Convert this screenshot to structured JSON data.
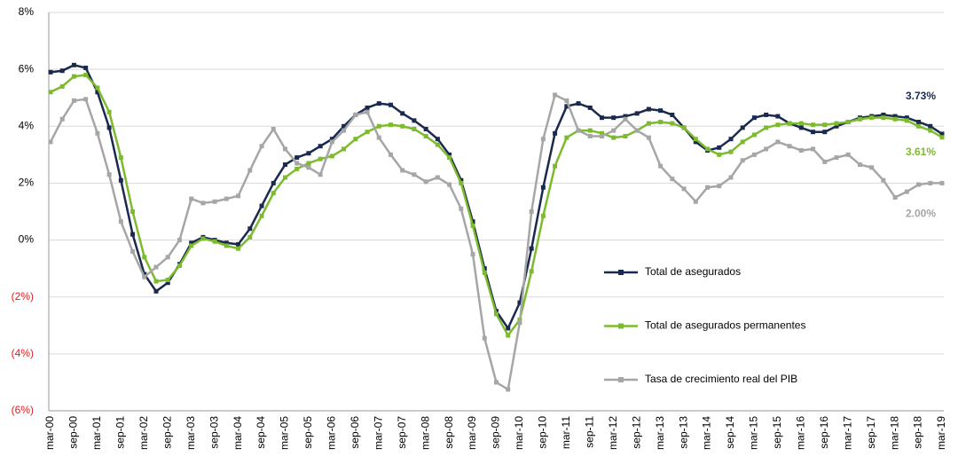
{
  "chart_data": {
    "type": "line",
    "categories": [
      "mar-00",
      null,
      "sep-00",
      null,
      "mar-01",
      null,
      "sep-01",
      null,
      "mar-02",
      null,
      "sep-02",
      null,
      "mar-03",
      null,
      "sep-03",
      null,
      "mar-04",
      null,
      "sep-04",
      null,
      "mar-05",
      null,
      "sep-05",
      null,
      "mar-06",
      null,
      "sep-06",
      null,
      "mar-07",
      null,
      "sep-07",
      null,
      "mar-08",
      null,
      "sep-08",
      null,
      "mar-09",
      null,
      "sep-09",
      null,
      "mar-10",
      null,
      "sep-10",
      null,
      "mar-11",
      null,
      "sep-11",
      null,
      "mar-12",
      null,
      "sep-12",
      null,
      "mar-13",
      null,
      "sep-13",
      null,
      "mar-14",
      null,
      "sep-14",
      null,
      "mar-15",
      null,
      "sep-15",
      null,
      "mar-16",
      null,
      "sep-16",
      null,
      "mar-17",
      null,
      "sep-17",
      null,
      "mar-18",
      null,
      "sep-18",
      null,
      "mar-19"
    ],
    "series": [
      {
        "name": "Total de asegurados",
        "color": "#1a2a4f",
        "end_label": "3.73%",
        "values": [
          5.9,
          5.95,
          6.15,
          6.05,
          5.2,
          3.95,
          2.1,
          0.2,
          -1.2,
          -1.8,
          -1.5,
          -0.85,
          -0.1,
          0.1,
          0,
          -0.1,
          -0.15,
          0.4,
          1.2,
          2.0,
          2.65,
          2.9,
          3.05,
          3.3,
          3.55,
          4.0,
          4.4,
          4.65,
          4.8,
          4.75,
          4.45,
          4.2,
          3.9,
          3.55,
          3.0,
          2.1,
          0.65,
          -1.0,
          -2.5,
          -3.1,
          -2.2,
          -0.3,
          1.85,
          3.75,
          4.7,
          4.8,
          4.65,
          4.3,
          4.3,
          4.35,
          4.45,
          4.6,
          4.55,
          4.4,
          3.95,
          3.45,
          3.15,
          3.25,
          3.55,
          3.95,
          4.3,
          4.4,
          4.35,
          4.1,
          3.95,
          3.8,
          3.8,
          4.0,
          4.15,
          4.3,
          4.35,
          4.4,
          4.35,
          4.3,
          4.15,
          4.0,
          3.73
        ]
      },
      {
        "name": "Total de asegurados permanentes",
        "color": "#7dbb2e",
        "end_label": "3.61%",
        "values": [
          5.2,
          5.4,
          5.75,
          5.8,
          5.35,
          4.5,
          2.9,
          1.0,
          -0.6,
          -1.45,
          -1.4,
          -0.9,
          -0.2,
          0.05,
          -0.05,
          -0.2,
          -0.3,
          0.1,
          0.85,
          1.65,
          2.2,
          2.5,
          2.7,
          2.85,
          2.95,
          3.2,
          3.55,
          3.8,
          4.0,
          4.05,
          4.0,
          3.9,
          3.65,
          3.35,
          2.9,
          2.0,
          0.5,
          -1.15,
          -2.6,
          -3.35,
          -2.8,
          -1.1,
          0.85,
          2.6,
          3.6,
          3.85,
          3.85,
          3.75,
          3.6,
          3.65,
          3.85,
          4.1,
          4.15,
          4.1,
          3.95,
          3.55,
          3.2,
          3.0,
          3.1,
          3.45,
          3.7,
          3.95,
          4.05,
          4.1,
          4.1,
          4.05,
          4.05,
          4.1,
          4.15,
          4.25,
          4.3,
          4.3,
          4.25,
          4.2,
          4.0,
          3.85,
          3.61
        ]
      },
      {
        "name": "Tasa de crecimiento real del PIB",
        "color": "#a6a6a6",
        "end_label": "2.00%",
        "values": [
          3.45,
          4.25,
          4.9,
          4.95,
          3.75,
          2.3,
          0.65,
          -0.4,
          -1.3,
          -0.95,
          -0.6,
          0,
          1.45,
          1.3,
          1.35,
          1.45,
          1.55,
          2.45,
          3.3,
          3.9,
          3.2,
          2.7,
          2.55,
          2.3,
          3.45,
          3.85,
          4.4,
          4.5,
          3.6,
          3.0,
          2.45,
          2.3,
          2.05,
          2.2,
          1.95,
          1.1,
          -0.5,
          -3.45,
          -5.0,
          -5.25,
          -2.9,
          1.0,
          3.55,
          5.1,
          4.9,
          3.85,
          3.65,
          3.65,
          3.85,
          4.25,
          3.85,
          3.6,
          2.6,
          2.15,
          1.8,
          1.35,
          1.85,
          1.9,
          2.2,
          2.8,
          3.0,
          3.2,
          3.45,
          3.3,
          3.15,
          3.2,
          2.75,
          2.9,
          3.0,
          2.65,
          2.55,
          2.1,
          1.5,
          1.7,
          1.95,
          2.0,
          2.0
        ]
      }
    ],
    "ylim": [
      -6,
      8
    ],
    "yticks": [
      {
        "value": -6,
        "label": "(6%)"
      },
      {
        "value": -4,
        "label": "(4%)"
      },
      {
        "value": -2,
        "label": "(2%)"
      },
      {
        "value": 0,
        "label": "0%"
      },
      {
        "value": 2,
        "label": "2%"
      },
      {
        "value": 4,
        "label": "4%"
      },
      {
        "value": 6,
        "label": "6%"
      },
      {
        "value": 8,
        "label": "8%"
      }
    ],
    "grid": true
  }
}
